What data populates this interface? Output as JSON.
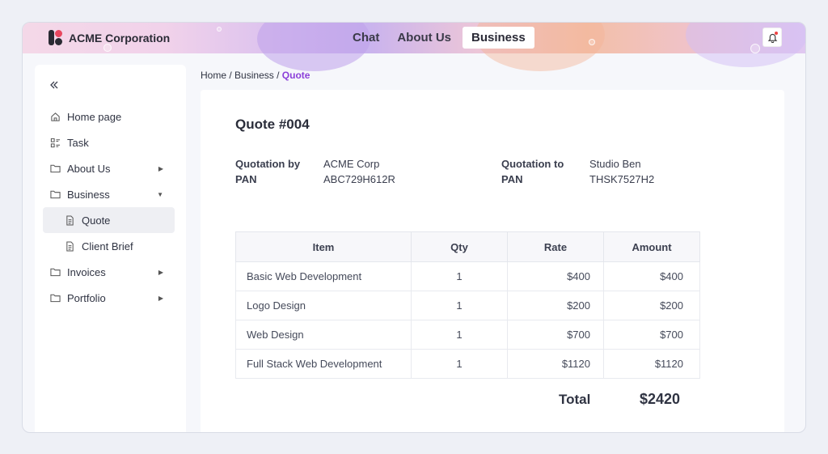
{
  "app": {
    "brand": "ACME Corporation"
  },
  "nav": [
    {
      "label": "Chat"
    },
    {
      "label": "About Us"
    },
    {
      "label": "Business",
      "active": true
    }
  ],
  "sidebar": {
    "items": [
      {
        "label": "Home page",
        "icon": "home-icon"
      },
      {
        "label": "Task",
        "icon": "task-list-icon"
      },
      {
        "label": "About Us",
        "icon": "folder-icon",
        "caret": "right"
      },
      {
        "label": "Business",
        "icon": "folder-icon",
        "caret": "down"
      },
      {
        "label": "Quote",
        "icon": "document-icon",
        "sub": true,
        "selected": true
      },
      {
        "label": "Client Brief",
        "icon": "document-icon",
        "sub": true
      },
      {
        "label": "Invoices",
        "icon": "folder-icon",
        "caret": "right"
      },
      {
        "label": "Portfolio",
        "icon": "folder-icon",
        "caret": "right"
      }
    ]
  },
  "breadcrumb": {
    "home": "Home",
    "sep": "/",
    "section": "Business",
    "current": "Quote"
  },
  "quote": {
    "title": "Quote #004",
    "by": {
      "label": "Quotation by",
      "value": "ACME Corp",
      "pan_label": "PAN",
      "pan": "ABC729H612R"
    },
    "to": {
      "label": "Quotation to",
      "value": "Studio Ben",
      "pan_label": "PAN",
      "pan": "THSK7527H2"
    },
    "columns": [
      "Item",
      "Qty",
      "Rate",
      "Amount"
    ],
    "rows": [
      {
        "item": "Basic Web Development",
        "qty": "1",
        "rate": "$400",
        "amount": "$400"
      },
      {
        "item": "Logo Design",
        "qty": "1",
        "rate": "$200",
        "amount": "$200"
      },
      {
        "item": "Web Design",
        "qty": "1",
        "rate": "$700",
        "amount": "$700"
      },
      {
        "item": "Full Stack Web Development",
        "qty": "1",
        "rate": "$1120",
        "amount": "$1120"
      }
    ],
    "total_label": "Total",
    "total_value": "$2420"
  },
  "colors": {
    "accent": "#8b3fd9",
    "logo_red": "#e8475f"
  }
}
